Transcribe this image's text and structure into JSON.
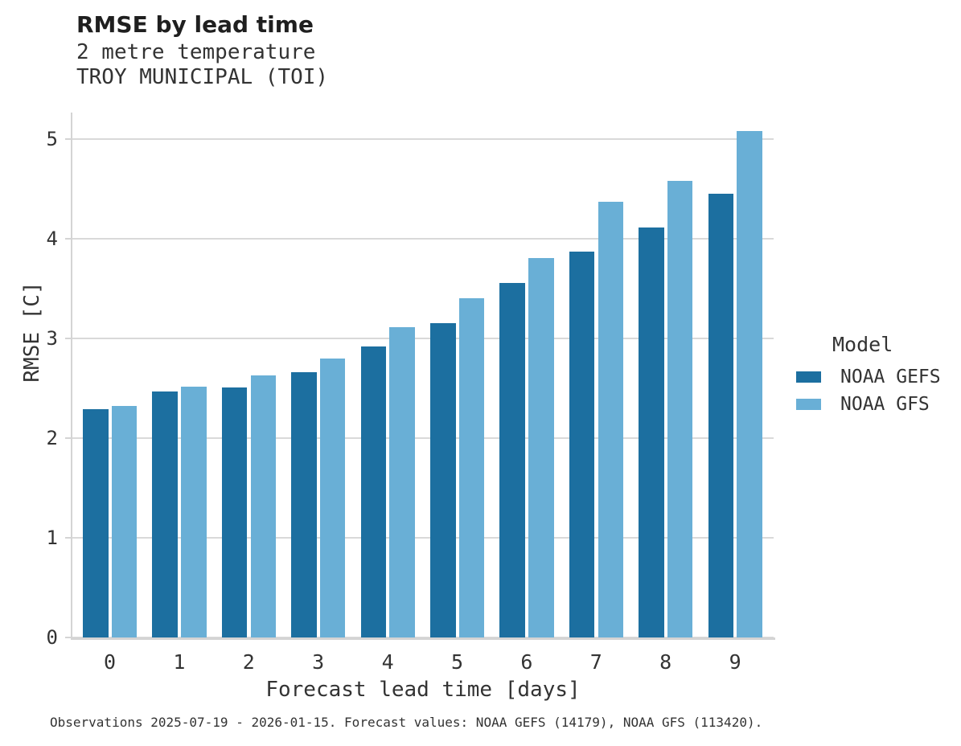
{
  "header": {
    "title": "RMSE by lead time",
    "subtitle_line1": "2 metre temperature",
    "subtitle_line2": "TROY MUNICIPAL (TOI)"
  },
  "legend": {
    "title": "Model",
    "entries": [
      {
        "label": "NOAA GEFS",
        "color": "#1C6FA0"
      },
      {
        "label": "NOAA GFS",
        "color": "#69AFD6"
      }
    ]
  },
  "caption": {
    "text": "Observations 2025-07-19 - 2026-01-15. Forecast values: NOAA GEFS (14179), NOAA GFS (113420)."
  },
  "chart_data": {
    "type": "bar",
    "title": "RMSE by lead time",
    "subtitle": [
      "2 metre temperature",
      "TROY MUNICIPAL (TOI)"
    ],
    "categories": [
      "0",
      "1",
      "2",
      "3",
      "4",
      "5",
      "6",
      "7",
      "8",
      "9"
    ],
    "series": [
      {
        "name": "NOAA GEFS",
        "color": "#1C6FA0",
        "values": [
          2.29,
          2.47,
          2.51,
          2.66,
          2.92,
          3.15,
          3.56,
          3.87,
          4.11,
          4.45
        ]
      },
      {
        "name": "NOAA GFS",
        "color": "#69AFD6",
        "values": [
          2.32,
          2.52,
          2.63,
          2.8,
          3.11,
          3.4,
          3.81,
          4.37,
          4.58,
          5.08
        ]
      }
    ],
    "xlabel": "Forecast lead time [days]",
    "ylabel": "RMSE [C]",
    "ylim": [
      0,
      5.27
    ],
    "yticks": [
      0,
      1,
      2,
      3,
      4,
      5
    ],
    "grid": true,
    "grid_color": "#d9d9d9",
    "axis_color": "#d4d4d4",
    "text_color": "#333333",
    "legend_position": "right"
  }
}
